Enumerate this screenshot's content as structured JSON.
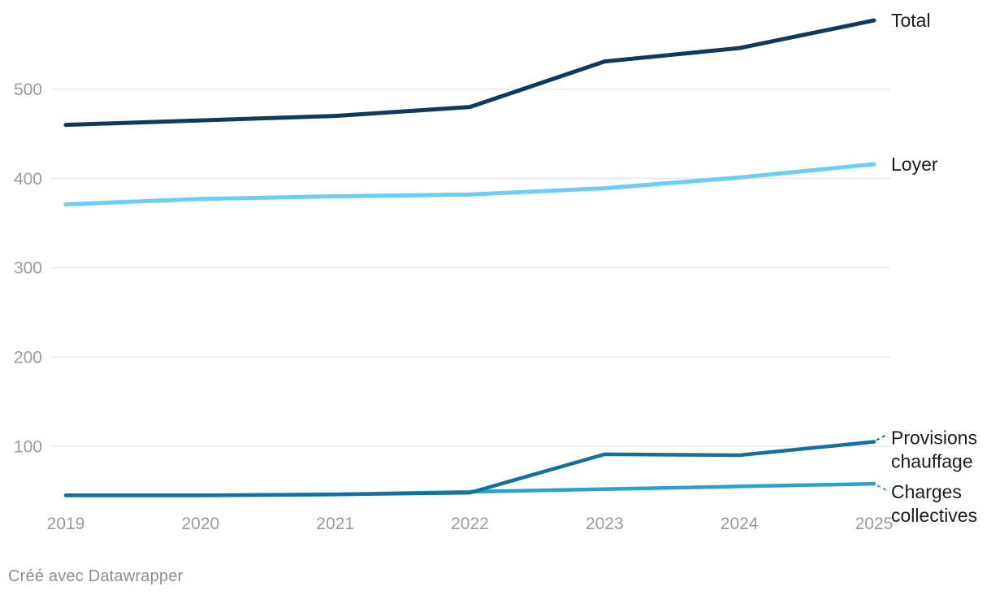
{
  "chart_data": {
    "type": "line",
    "x": [
      2019,
      2020,
      2021,
      2022,
      2023,
      2024,
      2025
    ],
    "x_tick_labels": [
      "2019",
      "2020",
      "2021",
      "2022",
      "2023",
      "2024",
      "2025"
    ],
    "y_ticks": [
      100,
      200,
      300,
      400,
      500
    ],
    "y_tick_labels": [
      "100",
      "200",
      "300",
      "400",
      "500"
    ],
    "ylim": [
      40,
      600
    ],
    "grid": "horizontal-only",
    "legend_position": "labels-at-line-ends-right",
    "title": "",
    "xlabel": "",
    "ylabel": "",
    "series": [
      {
        "name": "Total",
        "label_lines": [
          "Total"
        ],
        "color": "#11395c",
        "values": [
          460,
          465,
          470,
          480,
          531,
          546,
          577
        ]
      },
      {
        "name": "Loyer",
        "label_lines": [
          "Loyer"
        ],
        "color": "#6bcef7",
        "values": [
          371,
          377,
          380,
          382,
          389,
          401,
          416
        ]
      },
      {
        "name": "Provisions chauffage",
        "label_lines": [
          "Provisions",
          "chauffage"
        ],
        "color": "#13719b",
        "values": [
          45,
          45,
          46,
          48,
          91,
          90,
          105
        ]
      },
      {
        "name": "Charges collectives",
        "label_lines": [
          "Charges",
          "collectives"
        ],
        "color": "#29a3cd",
        "values": [
          45,
          45,
          46,
          49,
          52,
          55,
          58
        ]
      }
    ],
    "colors": {
      "gridline": "#e7e7e7",
      "axis_tick_text": "#9b9b9b",
      "series_label_text": "#1d1d1d"
    }
  },
  "footer": {
    "credit": "Créé avec Datawrapper"
  }
}
